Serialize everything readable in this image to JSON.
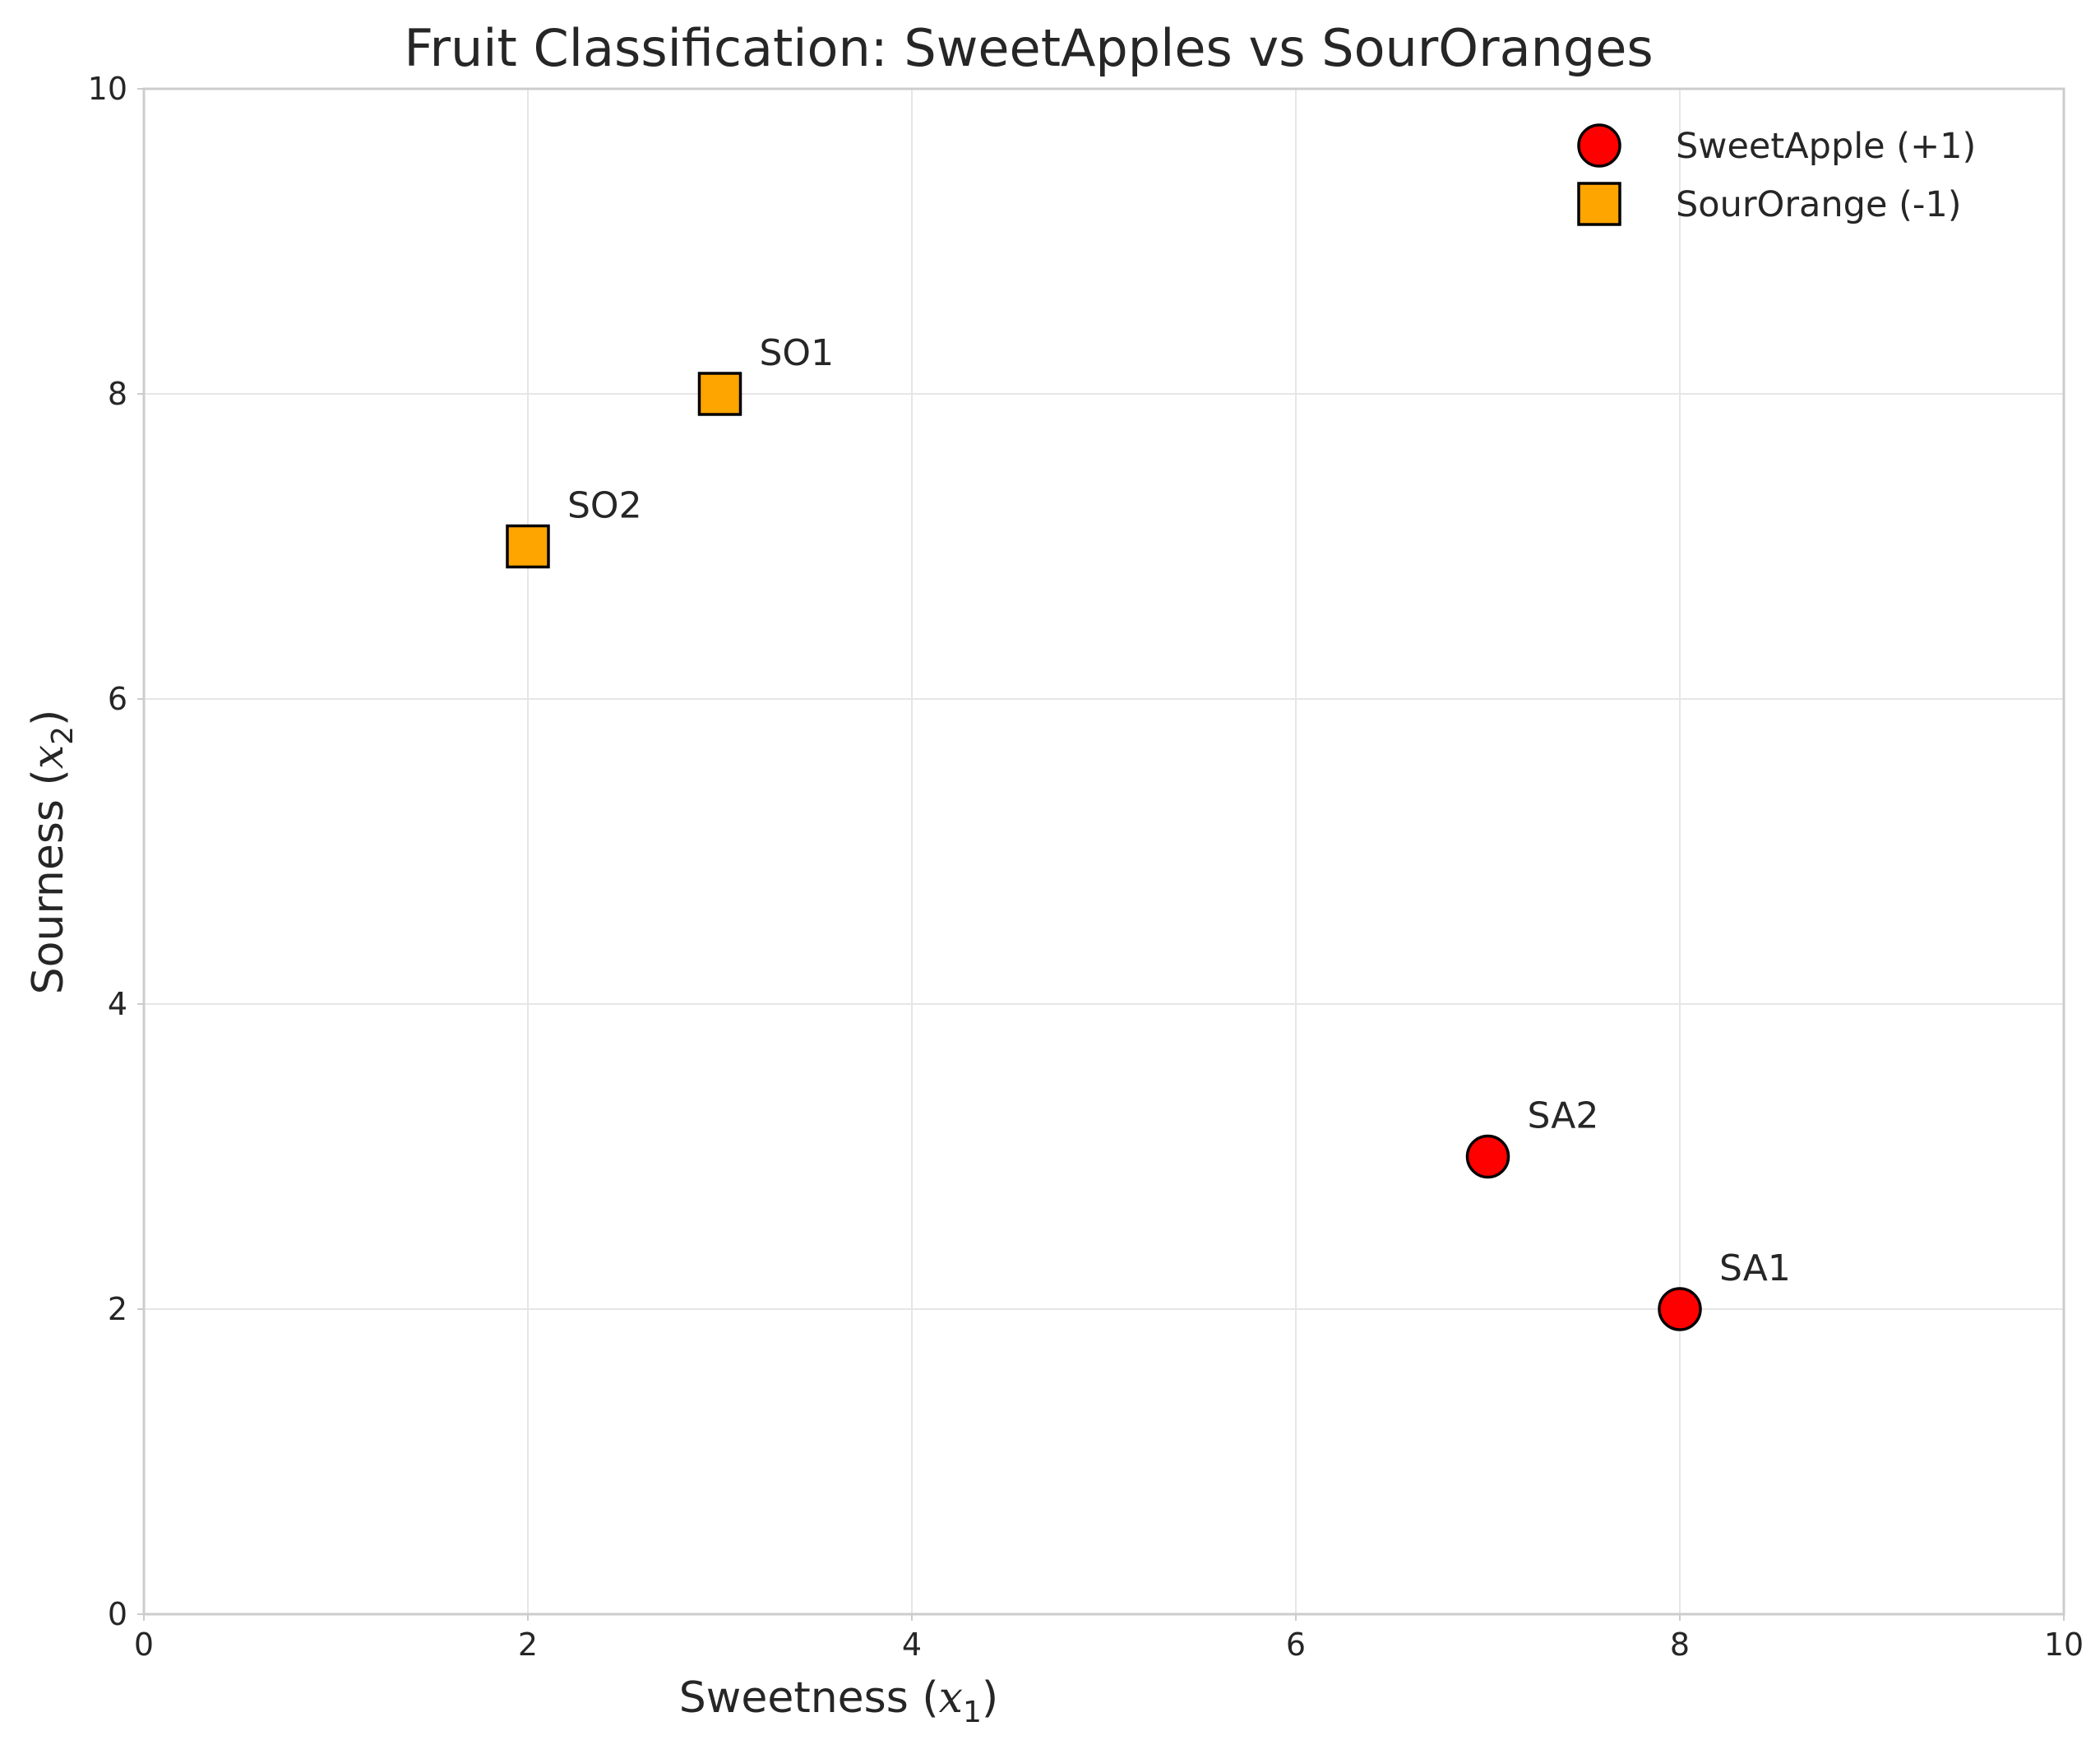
{
  "chart_data": {
    "type": "scatter",
    "title": "Fruit Classification: SweetApples vs SourOranges",
    "xlabel": {
      "text": "Sweetness (",
      "math": "x",
      "sub": "1",
      "close": ")"
    },
    "ylabel": {
      "text": "Sourness (",
      "math": "x",
      "sub": "2",
      "close": ")"
    },
    "xlim": [
      0,
      10
    ],
    "ylim": [
      0,
      10
    ],
    "xticks": [
      0,
      2,
      4,
      6,
      8,
      10
    ],
    "yticks": [
      0,
      2,
      4,
      6,
      8,
      10
    ],
    "grid": true,
    "legend_position": "top-right",
    "series": [
      {
        "name": "SweetApple (+1)",
        "marker": "circle",
        "color": "#ff0000",
        "edge_color": "#000000",
        "points": [
          {
            "label": "SA1",
            "x": 8,
            "y": 2
          },
          {
            "label": "SA2",
            "x": 7,
            "y": 3
          }
        ]
      },
      {
        "name": "SourOrange (-1)",
        "marker": "square",
        "color": "#ffa500",
        "edge_color": "#000000",
        "points": [
          {
            "label": "SO1",
            "x": 3,
            "y": 8
          },
          {
            "label": "SO2",
            "x": 2,
            "y": 7
          }
        ]
      }
    ]
  }
}
